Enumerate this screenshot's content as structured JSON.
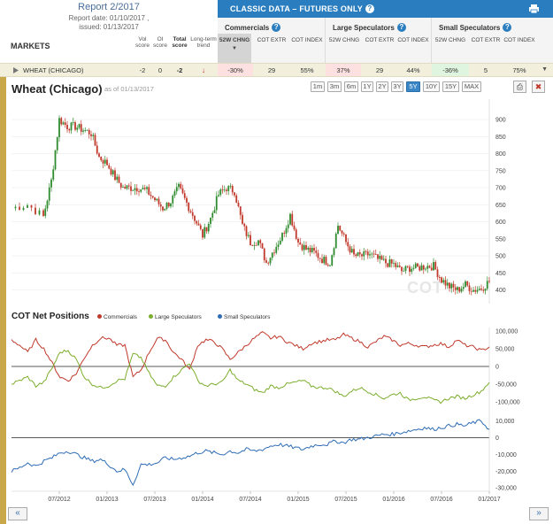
{
  "header": {
    "report_title": "Report 2/2017",
    "report_date": "Report date: 01/10/2017 ,",
    "issued": "issued: 01/13/2017",
    "markets_label": "MARKETS",
    "col_vol": "Vol score",
    "col_oi": "OI score",
    "col_total": "Total score",
    "col_trend": "Long-term trend",
    "classic_title": "CLASSIC DATA – FUTURES ONLY",
    "help_glyph": "?"
  },
  "groups": [
    {
      "title": "Commercials",
      "cols": [
        "52W CHNG",
        "COT EXTR",
        "COT INDEX"
      ]
    },
    {
      "title": "Large Speculators",
      "cols": [
        "52W CHNG",
        "COT EXTR",
        "COT INDEX"
      ]
    },
    {
      "title": "Small Speculators",
      "cols": [
        "52W CHNG",
        "COT EXTR",
        "COT INDEX"
      ]
    }
  ],
  "row": {
    "market": "WHEAT (CHICAGO)",
    "vol": "-2",
    "oi": "0",
    "total": "-2",
    "trend_arrow": "↓",
    "com_52w": "-30%",
    "com_extr": "29",
    "com_index": "55%",
    "ls_52w": "37%",
    "ls_extr": "29",
    "ls_index": "44%",
    "ss_52w": "-36%",
    "ss_extr": "5",
    "ss_index": "75%",
    "scroll_glyph": "▼"
  },
  "chart_header": {
    "title": "Wheat (Chicago)",
    "asof": "as of 01/13/2017",
    "ranges": [
      "1m",
      "3m",
      "6m",
      "1Y",
      "2Y",
      "3Y",
      "5Y",
      "10Y",
      "15Y",
      "MAX"
    ],
    "active_range": "5Y",
    "print_glyph": "⎙",
    "close_glyph": "✖",
    "cot_title": "COT Net Positions",
    "legend": [
      "Commercials",
      "Large Speculators",
      "Small Speculators"
    ],
    "watermark": "COT",
    "nav_prev": "«",
    "nav_next": "»"
  },
  "colors": {
    "commercials": "#c0392b",
    "large_speculators": "#7cad2d",
    "small_speculators": "#2f6db5",
    "candle_up": "#2e8b2e",
    "candle_down": "#c0392b"
  },
  "chart_data": [
    {
      "type": "candlestick",
      "title": "Wheat (Chicago)",
      "y_ticks": [
        400,
        450,
        500,
        550,
        600,
        650,
        700,
        750,
        800,
        850,
        900
      ],
      "ylim": [
        360,
        960
      ],
      "x_ticks": [
        "07/2012",
        "01/2013",
        "07/2013",
        "01/2014",
        "07/2014",
        "01/2015",
        "07/2015",
        "01/2016",
        "07/2016",
        "01/2017"
      ],
      "xlim": [
        "01/2012",
        "01/2017"
      ],
      "approx_close_path": [
        [
          "01/2012",
          640
        ],
        [
          "03/2012",
          650
        ],
        [
          "05/2012",
          615
        ],
        [
          "06/2012",
          720
        ],
        [
          "07/2012",
          900
        ],
        [
          "08/2012",
          880
        ],
        [
          "09/2012",
          880
        ],
        [
          "10/2012",
          870
        ],
        [
          "11/2012",
          860
        ],
        [
          "12/2012",
          790
        ],
        [
          "01/2013",
          770
        ],
        [
          "02/2013",
          730
        ],
        [
          "03/2013",
          700
        ],
        [
          "04/2013",
          700
        ],
        [
          "05/2013",
          700
        ],
        [
          "06/2013",
          690
        ],
        [
          "07/2013",
          665
        ],
        [
          "08/2013",
          640
        ],
        [
          "09/2013",
          660
        ],
        [
          "10/2013",
          700
        ],
        [
          "11/2013",
          655
        ],
        [
          "12/2013",
          610
        ],
        [
          "01/2014",
          560
        ],
        [
          "02/2014",
          610
        ],
        [
          "03/2014",
          680
        ],
        [
          "04/2014",
          700
        ],
        [
          "05/2014",
          690
        ],
        [
          "06/2014",
          590
        ],
        [
          "07/2014",
          540
        ],
        [
          "08/2014",
          545
        ],
        [
          "09/2014",
          480
        ],
        [
          "10/2014",
          520
        ],
        [
          "11/2014",
          560
        ],
        [
          "12/2014",
          620
        ],
        [
          "01/2015",
          540
        ],
        [
          "02/2015",
          520
        ],
        [
          "03/2015",
          510
        ],
        [
          "04/2015",
          490
        ],
        [
          "05/2015",
          480
        ],
        [
          "06/2015",
          590
        ],
        [
          "07/2015",
          540
        ],
        [
          "08/2015",
          500
        ],
        [
          "09/2015",
          500
        ],
        [
          "10/2015",
          505
        ],
        [
          "11/2015",
          490
        ],
        [
          "12/2015",
          480
        ],
        [
          "01/2016",
          475
        ],
        [
          "02/2016",
          455
        ],
        [
          "03/2016",
          465
        ],
        [
          "04/2016",
          465
        ],
        [
          "05/2016",
          470
        ],
        [
          "06/2016",
          470
        ],
        [
          "07/2016",
          430
        ],
        [
          "08/2016",
          410
        ],
        [
          "09/2016",
          400
        ],
        [
          "10/2016",
          415
        ],
        [
          "11/2016",
          400
        ],
        [
          "12/2016",
          405
        ],
        [
          "01/2017",
          425
        ]
      ]
    },
    {
      "type": "line",
      "title": "COT Net Positions",
      "y_ticks_upper": [
        100000,
        50000,
        0,
        -50000,
        -100000
      ],
      "y_ticks_lower": [
        10000,
        0,
        -10000,
        -20000,
        -30000
      ],
      "x_ticks": [
        "07/2012",
        "01/2013",
        "07/2013",
        "01/2014",
        "07/2014",
        "01/2015",
        "07/2015",
        "01/2016",
        "07/2016",
        "01/2017"
      ],
      "series": [
        {
          "name": "Commercials",
          "values": [
            75000,
            60000,
            40000,
            75000,
            50000,
            10000,
            -30000,
            -40000,
            -20000,
            25000,
            60000,
            80000,
            80000,
            60000,
            60000,
            -30000,
            -10000,
            40000,
            80000,
            75000,
            40000,
            20000,
            -10000,
            60000,
            75000,
            70000,
            50000,
            20000,
            40000,
            60000,
            80000,
            95000,
            80000,
            85000,
            70000,
            60000,
            50000,
            65000,
            70000,
            75000,
            75000,
            90000,
            80000,
            70000,
            55000,
            70000,
            85000,
            75000,
            60000,
            65000,
            60000,
            55000,
            60000,
            65000,
            55000,
            75000,
            60000,
            55000,
            45000,
            55000
          ]
        },
        {
          "name": "Large Speculators",
          "values": [
            -50000,
            -40000,
            -30000,
            -55000,
            -45000,
            -5000,
            40000,
            45000,
            20000,
            -30000,
            -50000,
            -60000,
            -55000,
            -40000,
            -35000,
            35000,
            25000,
            -20000,
            -55000,
            -55000,
            -30000,
            -10000,
            10000,
            -40000,
            -55000,
            -50000,
            -45000,
            -10000,
            -40000,
            -50000,
            -65000,
            -75000,
            -55000,
            -60000,
            -50000,
            -45000,
            -40000,
            -55000,
            -60000,
            -60000,
            -70000,
            -85000,
            -70000,
            -60000,
            -70000,
            -80000,
            -90000,
            -80000,
            -75000,
            -95000,
            -90000,
            -85000,
            -95000,
            -100000,
            -90000,
            -85000,
            -90000,
            -80000,
            -70000,
            -45000
          ]
        },
        {
          "name": "Small Speculators",
          "values": [
            -20000,
            -18000,
            -15000,
            -17000,
            -14000,
            -12000,
            -9000,
            -8000,
            -10000,
            -12000,
            -14000,
            -13000,
            -16000,
            -20000,
            -19000,
            -28000,
            -16000,
            -16000,
            -15000,
            -12000,
            -13000,
            -12000,
            -11000,
            -9000,
            -8000,
            -9000,
            -10000,
            -8000,
            -9000,
            -7000,
            -8000,
            -7000,
            -5000,
            -4000,
            -5000,
            -6000,
            -7000,
            -5000,
            -4000,
            -4000,
            -2000,
            -3000,
            -1000,
            -1000,
            0,
            1000,
            2000,
            2000,
            3000,
            4000,
            5000,
            6000,
            5000,
            6000,
            7000,
            8000,
            7000,
            9000,
            10000,
            5000
          ]
        }
      ]
    }
  ]
}
